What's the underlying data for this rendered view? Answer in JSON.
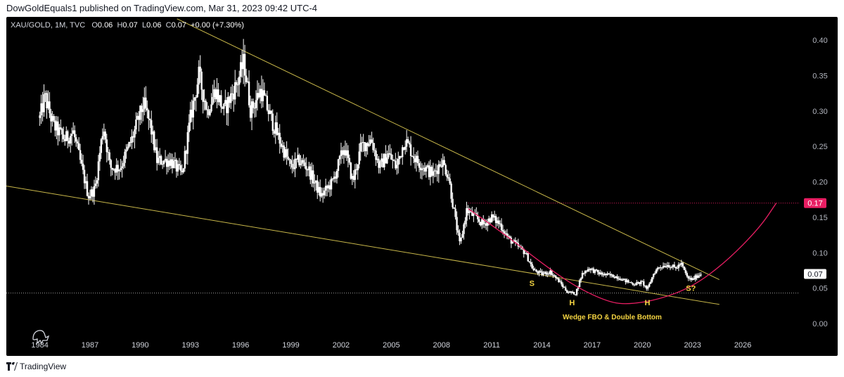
{
  "header": {
    "publisher": "DowGoldEquals1 published on TradingView.com, Mar 31, 2023 09:42 UTC-4"
  },
  "legend": {
    "symbol": "XAU/GOLD, 1M, TVC",
    "open_label": "O",
    "open": "0.06",
    "high_label": "H",
    "high": "0.07",
    "low_label": "L",
    "low": "0.06",
    "close_label": "C",
    "close": "0.07",
    "change": "+0.00 (+7.30%)"
  },
  "footer": {
    "brand": "TradingView"
  },
  "colors": {
    "background": "#000000",
    "candle": "#ffffff",
    "trendline": "#c9b84a",
    "arc": "#e91e63",
    "annotation": "#f5d442",
    "badge": "#e91e63"
  },
  "chart_data": {
    "type": "candlestick",
    "x_ticks": [
      "1984",
      "1987",
      "1990",
      "1993",
      "1996",
      "1999",
      "2002",
      "2005",
      "2008",
      "2011",
      "2014",
      "2017",
      "2020",
      "2023",
      "2026"
    ],
    "y_ticks": [
      "0.40",
      "0.35",
      "0.30",
      "0.25",
      "0.20",
      "0.15",
      "0.10",
      "0.05",
      "0.00"
    ],
    "ylim": [
      0,
      0.4
    ],
    "xlim": [
      1982.0,
      2029.4
    ],
    "price_badges": [
      {
        "label": "0.17",
        "value": 0.17,
        "style": "pink"
      },
      {
        "label": "0.07",
        "value": 0.07,
        "style": "white"
      }
    ],
    "horizontal_lines": [
      {
        "name": "resistance-dotted",
        "value": 0.17,
        "x_start": 2009.6,
        "color": "#e91e63"
      },
      {
        "name": "support-dotted",
        "value": 0.043,
        "x_start": 1982.0,
        "color": "#9e9e9e"
      }
    ],
    "trendlines": [
      {
        "name": "upper-wedge-line",
        "points": [
          [
            1992.2,
            0.43
          ],
          [
            2024.6,
            0.062
          ]
        ]
      },
      {
        "name": "lower-wedge-line",
        "points": [
          [
            1982.0,
            0.194
          ],
          [
            2024.6,
            0.027
          ]
        ]
      }
    ],
    "arc": {
      "points": [
        [
          2009.6,
          0.162
        ],
        [
          2012.0,
          0.122
        ],
        [
          2014.0,
          0.085
        ],
        [
          2016.0,
          0.052
        ],
        [
          2018.0,
          0.03
        ],
        [
          2019.2,
          0.027
        ],
        [
          2021.0,
          0.034
        ],
        [
          2023.0,
          0.052
        ],
        [
          2025.0,
          0.087
        ],
        [
          2027.0,
          0.135
        ],
        [
          2028.0,
          0.17
        ]
      ]
    },
    "annotations": [
      {
        "text": "S",
        "x": 2013.4,
        "y": 0.053
      },
      {
        "text": "H",
        "x": 2015.8,
        "y": 0.026
      },
      {
        "text": "H",
        "x": 2020.3,
        "y": 0.026
      },
      {
        "text": "S?",
        "x": 2022.9,
        "y": 0.046
      },
      {
        "text": "Wedge FBO & Double Bottom",
        "x": 2018.2,
        "y": 0.006
      }
    ],
    "series_keypoints": [
      [
        1984.0,
        0.29
      ],
      [
        1984.3,
        0.32
      ],
      [
        1984.8,
        0.28
      ],
      [
        1985.5,
        0.26
      ],
      [
        1986.0,
        0.27
      ],
      [
        1986.5,
        0.22
      ],
      [
        1986.9,
        0.18
      ],
      [
        1987.3,
        0.19
      ],
      [
        1987.8,
        0.28
      ],
      [
        1988.2,
        0.22
      ],
      [
        1988.8,
        0.22
      ],
      [
        1989.5,
        0.26
      ],
      [
        1990.2,
        0.31
      ],
      [
        1990.6,
        0.28
      ],
      [
        1991.0,
        0.23
      ],
      [
        1991.8,
        0.23
      ],
      [
        1992.5,
        0.21
      ],
      [
        1993.0,
        0.29
      ],
      [
        1993.5,
        0.35
      ],
      [
        1994.0,
        0.3
      ],
      [
        1994.5,
        0.33
      ],
      [
        1995.0,
        0.3
      ],
      [
        1995.8,
        0.34
      ],
      [
        1996.2,
        0.37
      ],
      [
        1996.6,
        0.3
      ],
      [
        1997.2,
        0.33
      ],
      [
        1997.8,
        0.29
      ],
      [
        1998.3,
        0.26
      ],
      [
        1999.0,
        0.22
      ],
      [
        1999.5,
        0.23
      ],
      [
        2000.0,
        0.22
      ],
      [
        2000.8,
        0.18
      ],
      [
        2001.5,
        0.2
      ],
      [
        2002.2,
        0.25
      ],
      [
        2002.7,
        0.2
      ],
      [
        2003.2,
        0.25
      ],
      [
        2003.8,
        0.26
      ],
      [
        2004.3,
        0.22
      ],
      [
        2004.8,
        0.24
      ],
      [
        2005.3,
        0.22
      ],
      [
        2005.8,
        0.26
      ],
      [
        2006.5,
        0.23
      ],
      [
        2007.0,
        0.22
      ],
      [
        2007.5,
        0.21
      ],
      [
        2008.0,
        0.23
      ],
      [
        2008.4,
        0.21
      ],
      [
        2008.8,
        0.15
      ],
      [
        2009.1,
        0.11
      ],
      [
        2009.5,
        0.16
      ],
      [
        2010.0,
        0.15
      ],
      [
        2010.5,
        0.14
      ],
      [
        2011.0,
        0.15
      ],
      [
        2011.5,
        0.14
      ],
      [
        2012.0,
        0.12
      ],
      [
        2012.5,
        0.11
      ],
      [
        2013.0,
        0.1
      ],
      [
        2013.5,
        0.075
      ],
      [
        2014.0,
        0.07
      ],
      [
        2014.5,
        0.073
      ],
      [
        2015.0,
        0.06
      ],
      [
        2015.5,
        0.045
      ],
      [
        2016.0,
        0.042
      ],
      [
        2016.4,
        0.07
      ],
      [
        2016.8,
        0.078
      ],
      [
        2017.5,
        0.07
      ],
      [
        2018.0,
        0.068
      ],
      [
        2018.5,
        0.066
      ],
      [
        2019.0,
        0.06
      ],
      [
        2019.5,
        0.056
      ],
      [
        2020.0,
        0.058
      ],
      [
        2020.3,
        0.048
      ],
      [
        2020.7,
        0.072
      ],
      [
        2021.0,
        0.08
      ],
      [
        2021.5,
        0.083
      ],
      [
        2022.0,
        0.078
      ],
      [
        2022.3,
        0.085
      ],
      [
        2022.7,
        0.064
      ],
      [
        2023.0,
        0.062
      ],
      [
        2023.3,
        0.068
      ],
      [
        2023.5,
        0.07
      ]
    ]
  }
}
